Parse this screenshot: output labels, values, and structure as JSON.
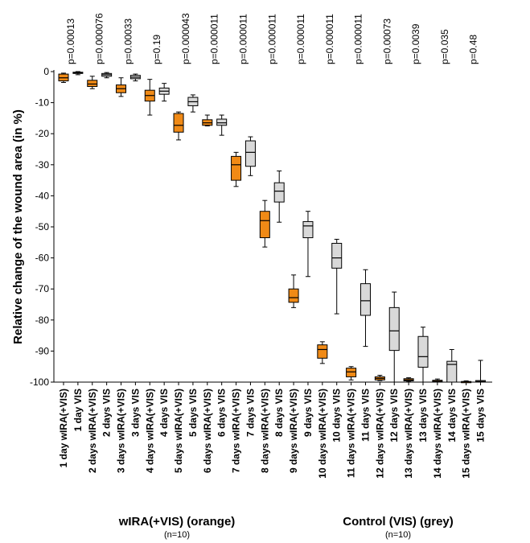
{
  "chart_data": {
    "type": "boxplot",
    "title": "",
    "xlabel": "",
    "ylabel": "Relative change of the wound area (in %)",
    "ylim": [
      -100,
      0
    ],
    "yticks": [
      0,
      -10,
      -20,
      -30,
      -40,
      -50,
      -60,
      -70,
      -80,
      -90,
      -100
    ],
    "grid": false,
    "colors": {
      "wIRA": "#f08a16",
      "VIS": "#d9d9d9",
      "outline": "#000000"
    },
    "categories": [
      "1 day wIRA(+VIS)",
      "1 day VIS",
      "2 days wIRA(+VIS)",
      "2 days VIS",
      "3 days wIRA(+VIS)",
      "3 days VIS",
      "4 days wIRA(+VIS)",
      "4 days VIS",
      "5 days wIRA(+VIS)",
      "5 days VIS",
      "6 days wIRA(+VIS)",
      "6 days VIS",
      "7 days wIRA(+VIS)",
      "7 days VIS",
      "8 days wIRA(+VIS)",
      "8 days VIS",
      "9 days wIRA(+VIS)",
      "9 days VIS",
      "10 days wIRA(+VIS)",
      "10 days VIS",
      "11 days wIRA(+VIS)",
      "11 days VIS",
      "12 days wIRA(+VIS)",
      "12 days VIS",
      "13 days wIRA(+VIS)",
      "13 days VIS",
      "14 days wIRA(+VIS)",
      "14 days VIS",
      "15 days wIRA(+VIS)",
      "15 days VIS"
    ],
    "groups": [
      "wIRA",
      "VIS",
      "wIRA",
      "VIS",
      "wIRA",
      "VIS",
      "wIRA",
      "VIS",
      "wIRA",
      "VIS",
      "wIRA",
      "VIS",
      "wIRA",
      "VIS",
      "wIRA",
      "VIS",
      "wIRA",
      "VIS",
      "wIRA",
      "VIS",
      "wIRA",
      "VIS",
      "wIRA",
      "VIS",
      "wIRA",
      "VIS",
      "wIRA",
      "VIS",
      "wIRA",
      "VIS"
    ],
    "boxes": [
      {
        "min": -3.5,
        "q1": -3.0,
        "median": -2.0,
        "q3": -0.8,
        "max": -0.5
      },
      {
        "min": -1.0,
        "q1": -0.6,
        "median": -0.4,
        "q3": -0.2,
        "max": 0.0
      },
      {
        "min": -5.5,
        "q1": -4.8,
        "median": -4.0,
        "q3": -2.8,
        "max": -1.5
      },
      {
        "min": -2.0,
        "q1": -1.5,
        "median": -1.0,
        "q3": -0.6,
        "max": -0.3
      },
      {
        "min": -8.0,
        "q1": -6.8,
        "median": -5.5,
        "q3": -4.3,
        "max": -2.0
      },
      {
        "min": -3.0,
        "q1": -2.3,
        "median": -1.8,
        "q3": -1.2,
        "max": -0.8
      },
      {
        "min": -14.0,
        "q1": -9.5,
        "median": -7.7,
        "q3": -6.0,
        "max": -2.5
      },
      {
        "min": -9.5,
        "q1": -7.3,
        "median": -6.3,
        "q3": -5.3,
        "max": -3.8
      },
      {
        "min": -22.0,
        "q1": -19.5,
        "median": -17.3,
        "q3": -13.5,
        "max": -13.0
      },
      {
        "min": -13.0,
        "q1": -11.0,
        "median": -9.7,
        "q3": -8.3,
        "max": -7.5
      },
      {
        "min": -17.5,
        "q1": -17.3,
        "median": -16.5,
        "q3": -15.5,
        "max": -14.0
      },
      {
        "min": -20.5,
        "q1": -17.3,
        "median": -16.5,
        "q3": -15.3,
        "max": -14.0
      },
      {
        "min": -37.0,
        "q1": -35.0,
        "median": -30.0,
        "q3": -27.3,
        "max": -26.0
      },
      {
        "min": -33.5,
        "q1": -30.5,
        "median": -26.0,
        "q3": -22.3,
        "max": -21.0
      },
      {
        "min": -56.5,
        "q1": -53.5,
        "median": -48.0,
        "q3": -45.0,
        "max": -41.5
      },
      {
        "min": -48.5,
        "q1": -42.0,
        "median": -38.5,
        "q3": -35.8,
        "max": -32.0
      },
      {
        "min": -76.0,
        "q1": -74.3,
        "median": -72.8,
        "q3": -70.0,
        "max": -65.5
      },
      {
        "min": -66.0,
        "q1": -53.5,
        "median": -49.7,
        "q3": -48.3,
        "max": -45.0
      },
      {
        "min": -94.0,
        "q1": -92.3,
        "median": -89.5,
        "q3": -88.0,
        "max": -87.0
      },
      {
        "min": -78.0,
        "q1": -63.3,
        "median": -60.0,
        "q3": -55.3,
        "max": -54.0
      },
      {
        "min": -99.3,
        "q1": -98.3,
        "median": -96.7,
        "q3": -95.5,
        "max": -95.0
      },
      {
        "min": -88.5,
        "q1": -78.5,
        "median": -73.8,
        "q3": -68.3,
        "max": -63.8
      },
      {
        "min": -99.5,
        "q1": -99.3,
        "median": -98.8,
        "q3": -98.3,
        "max": -97.8
      },
      {
        "min": -100.0,
        "q1": -89.8,
        "median": -83.5,
        "q3": -76.0,
        "max": -71.0
      },
      {
        "min": -99.9,
        "q1": -99.6,
        "median": -99.3,
        "q3": -98.9,
        "max": -98.6
      },
      {
        "min": -100.0,
        "q1": -95.2,
        "median": -91.8,
        "q3": -85.3,
        "max": -82.3
      },
      {
        "min": -100.0,
        "q1": -99.9,
        "median": -99.7,
        "q3": -99.4,
        "max": -99.0
      },
      {
        "min": -100.0,
        "q1": -100.0,
        "median": -94.3,
        "q3": -93.3,
        "max": -89.5
      },
      {
        "min": -100.0,
        "q1": -100.0,
        "median": -99.9,
        "q3": -99.8,
        "max": -99.6
      },
      {
        "min": -100.0,
        "q1": -100.0,
        "median": -99.8,
        "q3": -99.5,
        "max": -93.0
      }
    ],
    "p_values": [
      "p=0.00013",
      "p=0.000076",
      "p=0.00033",
      "p=0.19",
      "p=0.000043",
      "p=0.000011",
      "p=0.000011",
      "p=0.000011",
      "p=0.000011",
      "p=0.000011",
      "p=0.000011",
      "p=0.00073",
      "p=0.0039",
      "p=0.035",
      "p=0.48"
    ]
  },
  "legend": {
    "wira_title": "wIRA(+VIS) (orange)",
    "wira_n": "(n=10)",
    "vis_title": "Control (VIS) (grey)",
    "vis_n": "(n=10)"
  }
}
